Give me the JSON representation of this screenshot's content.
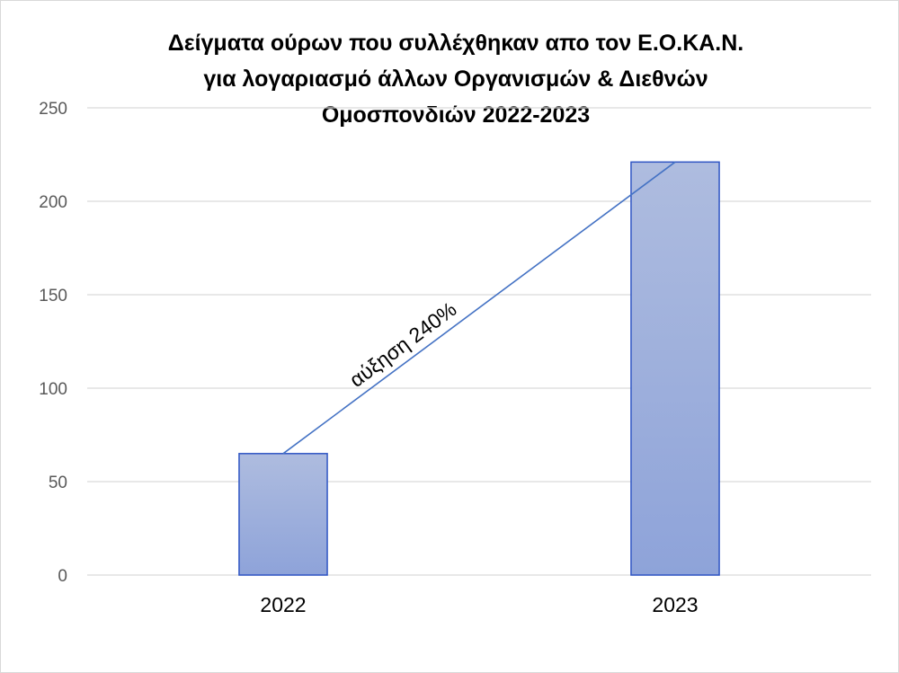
{
  "chart_data": {
    "type": "bar",
    "title_lines": [
      "Δείγματα  ούρων  που  συλλέχθηκαν  απο τον Ε.Ο.ΚΑ.Ν.",
      "για λογαριασμό  άλλων Οργανισμών & Διεθνών",
      "Ομοσπονδιών  2022-2023"
    ],
    "categories": [
      "2022",
      "2023"
    ],
    "values": [
      65,
      221
    ],
    "ylim": [
      0,
      250
    ],
    "yticks": [
      0,
      50,
      100,
      150,
      200,
      250
    ],
    "grid": true,
    "legend": "none",
    "annotation": {
      "text": "αύξηση 240%",
      "from_category": "2022",
      "to_category": "2023"
    },
    "colors": {
      "bar_top": "#aebcdf",
      "bar_bottom": "#8ea3d9",
      "bar_border": "#2f55c4",
      "trend_line": "#4472c4",
      "gridline": "#d9d9d9"
    }
  }
}
